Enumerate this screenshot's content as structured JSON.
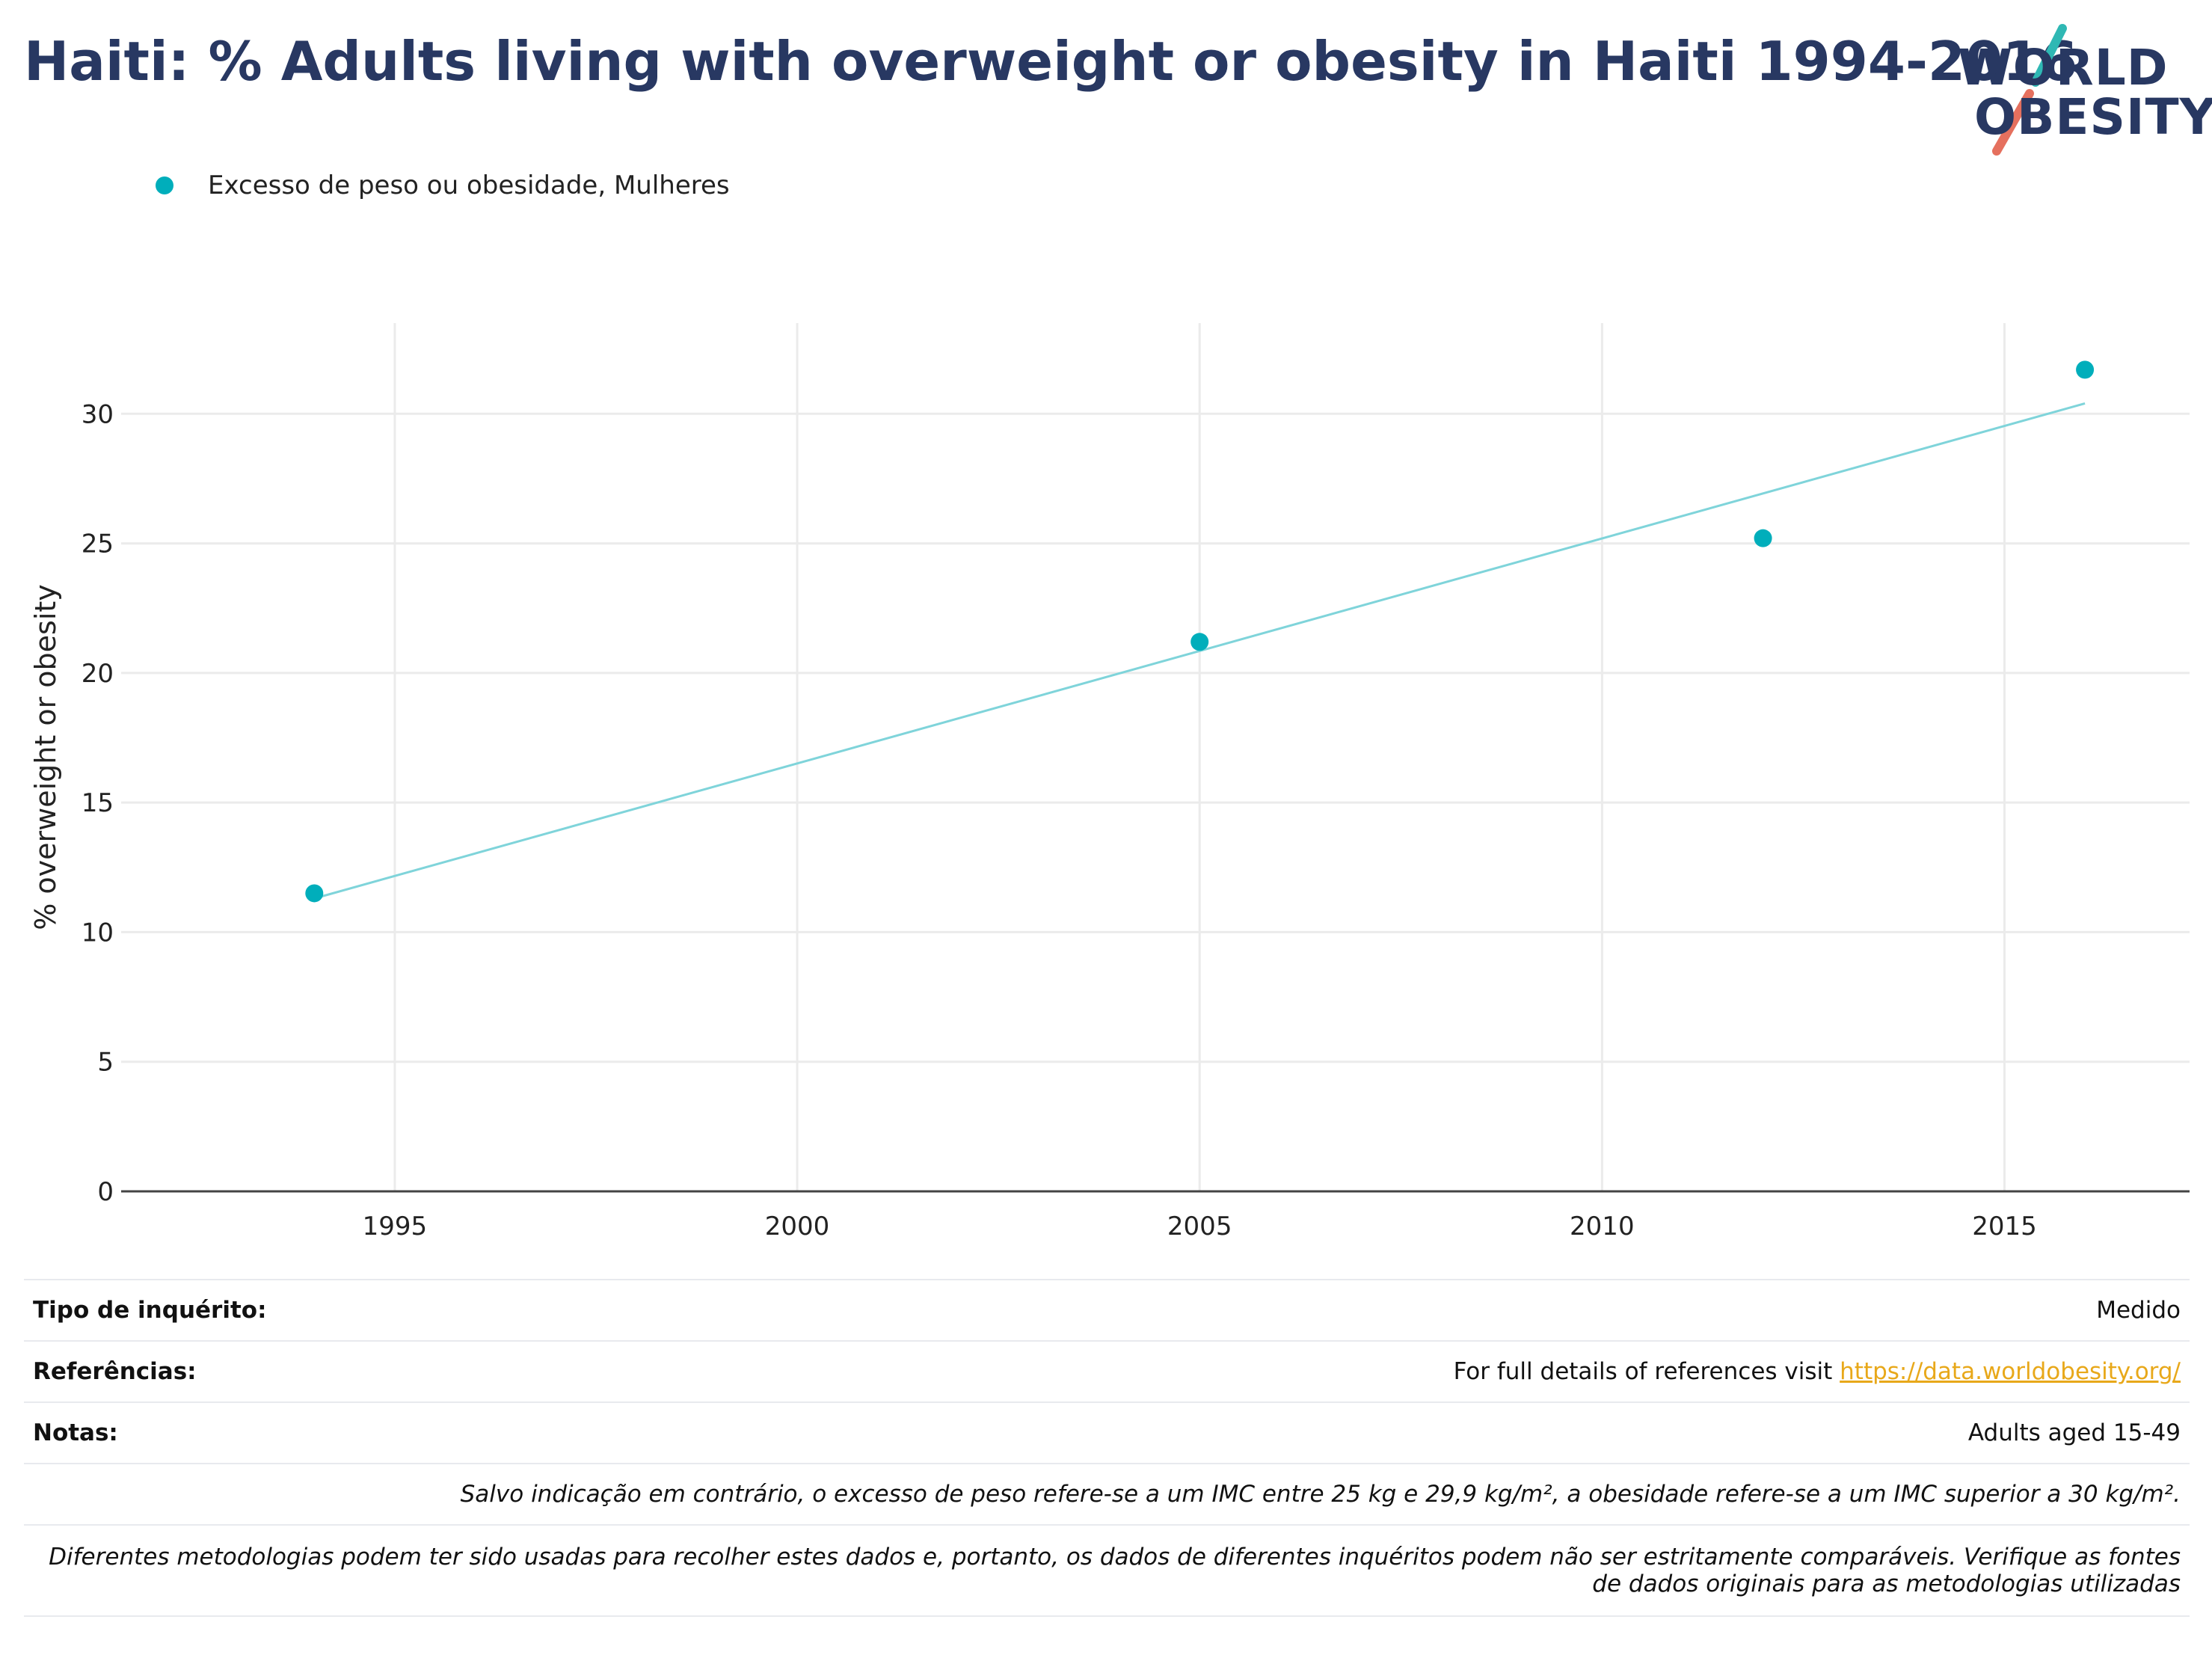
{
  "title": "Haiti: % Adults living with overweight or obesity in Haiti 1994-2016",
  "logo": {
    "line1": "WORLD",
    "line2": "OBESITY"
  },
  "colors": {
    "accent": "#00AEBB",
    "trend": "#7FD4DA",
    "title": "#283862",
    "link": "#E8A81A"
  },
  "chart_data": {
    "type": "scatter",
    "series": [
      {
        "name": "Excesso de peso ou obesidade, Mulheres",
        "x": [
          1994,
          2005,
          2012,
          2016
        ],
        "y": [
          11.5,
          21.2,
          25.2,
          31.7
        ]
      }
    ],
    "trendline": {
      "x": [
        1994,
        2016
      ],
      "y": [
        11.3,
        30.4
      ]
    },
    "ylabel": "% overweight or obesity",
    "xlabel": "",
    "xlim": [
      1991.6,
      2017.3
    ],
    "ylim": [
      0,
      33.5
    ],
    "xticks": [
      1995,
      2000,
      2005,
      2010,
      2015
    ],
    "yticks": [
      0,
      5,
      10,
      15,
      20,
      25,
      30
    ],
    "grid": true,
    "legend": "top-left"
  },
  "info": {
    "survey_type_label": "Tipo de inquérito:",
    "survey_type_value": "Medido",
    "references_label": "Referências:",
    "references_text": "For full details of references visit ",
    "references_link": "https://data.worldobesity.org/",
    "notes_label": "Notas:",
    "notes_value": "Adults aged 15-49",
    "bmi_note": "Salvo indicação em contrário, o excesso de peso refere-se a um IMC entre 25 kg e 29,9 kg/m², a obesidade refere-se a um IMC superior a 30 kg/m².",
    "method_note_line1": "Diferentes metodologias podem ter sido usadas para recolher estes dados e, portanto, os dados de diferentes inquéritos podem não ser estritamente comparáveis. Verifique as fontes",
    "method_note_line2": "de dados originais para as metodologias utilizadas"
  }
}
